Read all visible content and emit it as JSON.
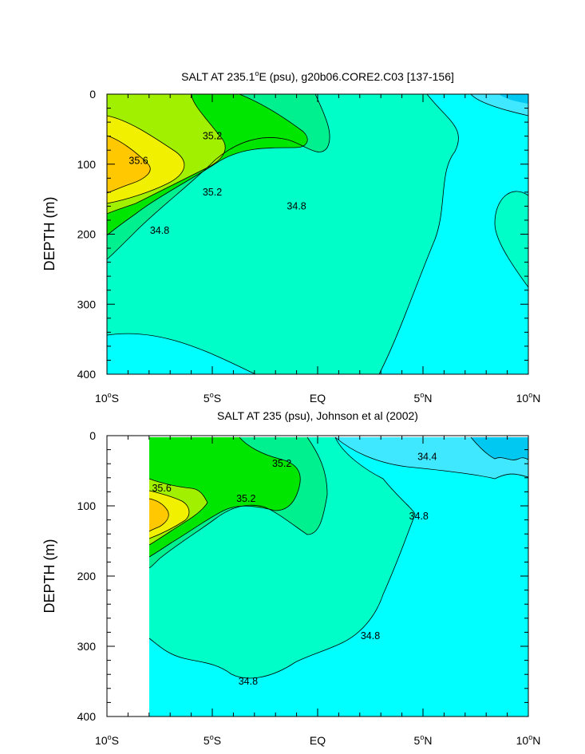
{
  "chart_data": [
    {
      "type": "contour",
      "title_main": "SALT AT 235.1",
      "title_sup": "o",
      "title_rest": "E (psu), g20b06.CORE2.C03 [137-156]",
      "ylabel": "DEPTH (m)",
      "xlim": [
        -10,
        10
      ],
      "ylim": [
        400,
        0
      ],
      "x_ticks": [
        {
          "value": -10,
          "num": "10",
          "deg": "o",
          "hem": "S"
        },
        {
          "value": -5,
          "num": "5",
          "deg": "o",
          "hem": "S"
        },
        {
          "value": 0,
          "num": "EQ",
          "deg": "",
          "hem": ""
        },
        {
          "value": 5,
          "num": "5",
          "deg": "o",
          "hem": "N"
        },
        {
          "value": 10,
          "num": "10",
          "deg": "o",
          "hem": "N"
        }
      ],
      "y_ticks": [
        0,
        100,
        200,
        300,
        400
      ],
      "palette": {
        "le_34.4": "#00c8f0",
        "34.4_34.6": "#40e8ff",
        "34.6_34.8": "#00ffff",
        "34.8_35.0": "#00ffc8",
        "35.0_35.2": "#00f090",
        "35.2_35.4": "#00e600",
        "35.4_35.6": "#a0f000",
        "35.6_35.8": "#f0f000",
        "gt_35.8": "#ffc800"
      },
      "contour_labels": [
        {
          "text": "35.2",
          "x": -5.0,
          "y": 60
        },
        {
          "text": "35.6",
          "x": -8.5,
          "y": 95
        },
        {
          "text": "35.2",
          "x": -5.0,
          "y": 140
        },
        {
          "text": "34.8",
          "x": -1.0,
          "y": 160
        },
        {
          "text": "34.8",
          "x": -7.5,
          "y": 195
        }
      ]
    },
    {
      "type": "contour",
      "title": "SALT AT 235 (psu), Johnson et al (2002)",
      "ylabel": "DEPTH (m)",
      "xlim": [
        -10,
        10
      ],
      "ylim": [
        400,
        0
      ],
      "data_xrange": [
        -8,
        10
      ],
      "x_ticks": [
        {
          "value": -10,
          "num": "10",
          "deg": "o",
          "hem": "S"
        },
        {
          "value": -5,
          "num": "5",
          "deg": "o",
          "hem": "S"
        },
        {
          "value": 0,
          "num": "EQ",
          "deg": "",
          "hem": ""
        },
        {
          "value": 5,
          "num": "5",
          "deg": "o",
          "hem": "N"
        },
        {
          "value": 10,
          "num": "10",
          "deg": "o",
          "hem": "N"
        }
      ],
      "y_ticks": [
        0,
        100,
        200,
        300,
        400
      ],
      "contour_labels": [
        {
          "text": "35.2",
          "x": -1.7,
          "y": 40
        },
        {
          "text": "34.4",
          "x": 5.2,
          "y": 30
        },
        {
          "text": "35.6",
          "x": -7.4,
          "y": 75
        },
        {
          "text": "35.2",
          "x": -3.4,
          "y": 90
        },
        {
          "text": "34.8",
          "x": 4.8,
          "y": 115
        },
        {
          "text": "34.8",
          "x": 2.5,
          "y": 285
        },
        {
          "text": "34.8",
          "x": -3.3,
          "y": 350
        }
      ]
    }
  ]
}
